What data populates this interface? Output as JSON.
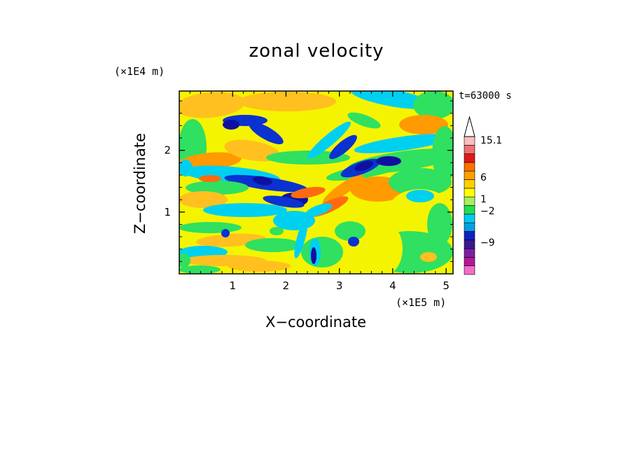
{
  "chart_data": {
    "type": "heatmap",
    "title": "zonal velocity",
    "xlabel": "X−coordinate",
    "ylabel": "Z−coordinate",
    "x_scale_label": "(×1E5 m)",
    "y_scale_label": "(×1E4 m)",
    "time_label": "t=63000 s",
    "xlim": [
      0,
      5.13
    ],
    "ylim": [
      0,
      2.96
    ],
    "x_ticks": [
      1,
      2,
      3,
      4,
      5
    ],
    "y_ticks": [
      1,
      2
    ],
    "x_tick_labels": [
      "1",
      "2",
      "3",
      "4",
      "5"
    ],
    "y_tick_labels": [
      "1",
      "2"
    ],
    "colorbar": {
      "extend_max": true,
      "levels_shown": [
        "15.1",
        "6",
        "1",
        "−2",
        "−9"
      ],
      "level_values": [
        15.1,
        6,
        1,
        -2,
        -9
      ],
      "bands": [
        {
          "color": "#f26ec8"
        },
        {
          "color": "#b4169a"
        },
        {
          "color": "#7b1fa0"
        },
        {
          "color": "#3a1890"
        },
        {
          "color": "#1020c0"
        },
        {
          "color": "#00a0e8"
        },
        {
          "color": "#00ccf0"
        },
        {
          "color": "#20e050"
        },
        {
          "color": "#a6f060"
        },
        {
          "color": "#ffff00"
        },
        {
          "color": "#ffd000"
        },
        {
          "color": "#ffa000"
        },
        {
          "color": "#ff7000"
        },
        {
          "color": "#e01818"
        },
        {
          "color": "#f07070"
        },
        {
          "color": "#f8c0c0"
        }
      ]
    },
    "field_palette": {
      "strong_negative": "#1010a0",
      "negative": "#0a32d0",
      "weak_negative": "#00d0f0",
      "near_zero": "#30e060",
      "weak_positive": "#f4f400",
      "positive": "#ffc020",
      "moderate_positive": "#ff9a00",
      "strong_positive": "#ff6a10"
    }
  }
}
